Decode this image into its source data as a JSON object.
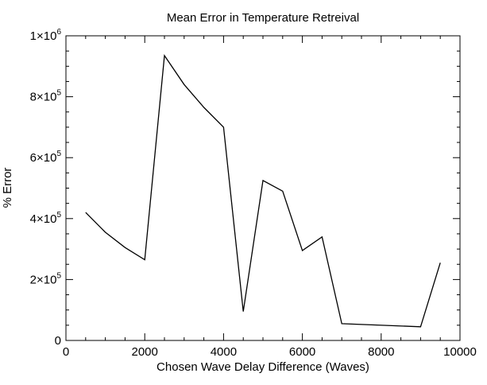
{
  "chart_data": {
    "type": "line",
    "title": "Mean Error in Temperature Retreival",
    "xlabel": "Chosen Wave Delay Difference (Waves)",
    "ylabel": "% Error",
    "xlim": [
      0,
      10000
    ],
    "ylim": [
      0,
      1000000
    ],
    "grid": false,
    "x_ticks": [
      0,
      2000,
      4000,
      6000,
      8000,
      10000
    ],
    "x_tick_labels": [
      "0",
      "2000",
      "4000",
      "6000",
      "8000",
      "10000"
    ],
    "y_ticks": [
      0,
      200000,
      400000,
      600000,
      800000,
      1000000
    ],
    "y_tick_labels": [
      {
        "base": "0",
        "exp": ""
      },
      {
        "base": "2×10",
        "exp": "5"
      },
      {
        "base": "4×10",
        "exp": "5"
      },
      {
        "base": "6×10",
        "exp": "5"
      },
      {
        "base": "8×10",
        "exp": "5"
      },
      {
        "base": "1×10",
        "exp": "6"
      }
    ],
    "series": [
      {
        "color": "#000000",
        "x": [
          500,
          1000,
          1500,
          2000,
          2500,
          3000,
          3500,
          4000,
          4500,
          5000,
          5500,
          6000,
          6500,
          7000,
          9000,
          9500
        ],
        "y": [
          420000,
          355000,
          305000,
          265000,
          935000,
          840000,
          765000,
          700000,
          95000,
          525000,
          490000,
          295000,
          340000,
          55000,
          45000,
          255000
        ]
      }
    ]
  }
}
